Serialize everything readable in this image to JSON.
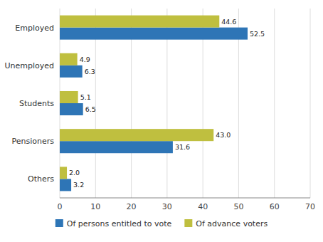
{
  "chart_data": {
    "type": "bar",
    "orientation": "horizontal",
    "categories": [
      "Others",
      "Pensioners",
      "Students",
      "Unemployed",
      "Employed"
    ],
    "series": [
      {
        "name": "Of persons entitled to vote",
        "color": "#2E75B6",
        "values": [
          3.2,
          31.6,
          6.5,
          6.3,
          52.5
        ]
      },
      {
        "name": "Of advance voters",
        "color": "#BFBF3F",
        "values": [
          2.0,
          43.0,
          5.1,
          4.9,
          44.6
        ],
        "value_labels": [
          "2.0",
          "43.0",
          "5.1",
          "4.9",
          "44.6"
        ]
      }
    ],
    "xlim": [
      0,
      70
    ],
    "xticks": [
      0,
      10,
      20,
      30,
      40,
      50,
      60,
      70
    ],
    "grid": true,
    "legend": "bottom",
    "data_labels": true
  }
}
